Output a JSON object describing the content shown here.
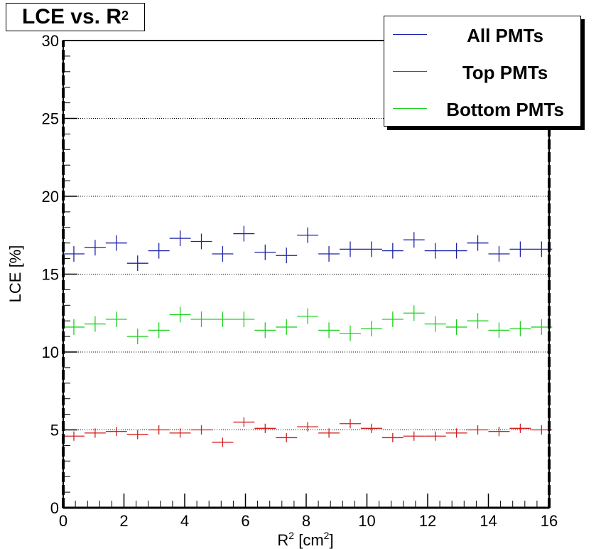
{
  "chart_data": {
    "type": "scatter",
    "title": "LCE vs. R",
    "title_superscript": "2",
    "xlabel": "R",
    "xlabel_superscript": "2",
    "xlabel_unit": " [cm",
    "xlabel_unit_superscript": "2",
    "xlabel_unit_close": "]",
    "ylabel": "LCE [%]",
    "xlim": [
      0,
      16
    ],
    "ylim": [
      0,
      30
    ],
    "x_ticks": [
      0,
      2,
      4,
      6,
      8,
      10,
      12,
      14,
      16
    ],
    "x_tick_labels": [
      "0",
      "2",
      "4",
      "6",
      "8",
      "10",
      "12",
      "14",
      "16"
    ],
    "y_ticks": [
      0,
      5,
      10,
      15,
      20,
      25,
      30
    ],
    "y_tick_labels": [
      "0",
      "5",
      "10",
      "15",
      "20",
      "25",
      "30"
    ],
    "y_grid": true,
    "legend_position": "top-right",
    "x_bin_halfwidth": 0.35,
    "x": [
      0.35,
      1.05,
      1.75,
      2.45,
      3.15,
      3.85,
      4.55,
      5.25,
      5.95,
      6.65,
      7.35,
      8.05,
      8.75,
      9.45,
      10.15,
      10.85,
      11.55,
      12.25,
      12.95,
      13.65,
      14.35,
      15.05,
      15.75
    ],
    "series": [
      {
        "name": "All PMTs",
        "color": "#1c23a6",
        "values": [
          16.3,
          16.7,
          17.0,
          15.7,
          16.5,
          17.3,
          17.1,
          16.3,
          17.6,
          16.4,
          16.2,
          17.5,
          16.3,
          16.6,
          16.6,
          16.5,
          17.2,
          16.5,
          16.5,
          17.0,
          16.3,
          16.6,
          16.6
        ],
        "errors": [
          0.5,
          0.5,
          0.5,
          0.5,
          0.5,
          0.5,
          0.5,
          0.5,
          0.5,
          0.5,
          0.5,
          0.5,
          0.5,
          0.5,
          0.5,
          0.5,
          0.5,
          0.5,
          0.5,
          0.5,
          0.5,
          0.5,
          0.5
        ]
      },
      {
        "name": "Top PMTs",
        "color": "#d01f1f",
        "values": [
          4.6,
          4.8,
          4.9,
          4.7,
          5.0,
          4.8,
          5.0,
          4.2,
          5.5,
          5.1,
          4.5,
          5.2,
          4.8,
          5.4,
          5.1,
          4.5,
          4.6,
          4.6,
          4.8,
          5.0,
          4.9,
          5.1,
          5.0
        ],
        "errors": [
          0.3,
          0.3,
          0.3,
          0.3,
          0.3,
          0.3,
          0.3,
          0.3,
          0.3,
          0.3,
          0.3,
          0.3,
          0.3,
          0.3,
          0.3,
          0.3,
          0.3,
          0.3,
          0.3,
          0.3,
          0.3,
          0.3,
          0.3
        ]
      },
      {
        "name": "Bottom PMTs",
        "color": "#20d020",
        "values": [
          11.6,
          11.8,
          12.1,
          11.0,
          11.4,
          12.4,
          12.1,
          12.1,
          12.1,
          11.4,
          11.6,
          12.3,
          11.4,
          11.2,
          11.5,
          12.1,
          12.5,
          11.8,
          11.6,
          12.0,
          11.4,
          11.5,
          11.6
        ],
        "errors": [
          0.5,
          0.5,
          0.5,
          0.5,
          0.5,
          0.5,
          0.5,
          0.5,
          0.5,
          0.5,
          0.5,
          0.5,
          0.5,
          0.5,
          0.5,
          0.5,
          0.5,
          0.5,
          0.5,
          0.5,
          0.5,
          0.5,
          0.5
        ]
      }
    ]
  }
}
